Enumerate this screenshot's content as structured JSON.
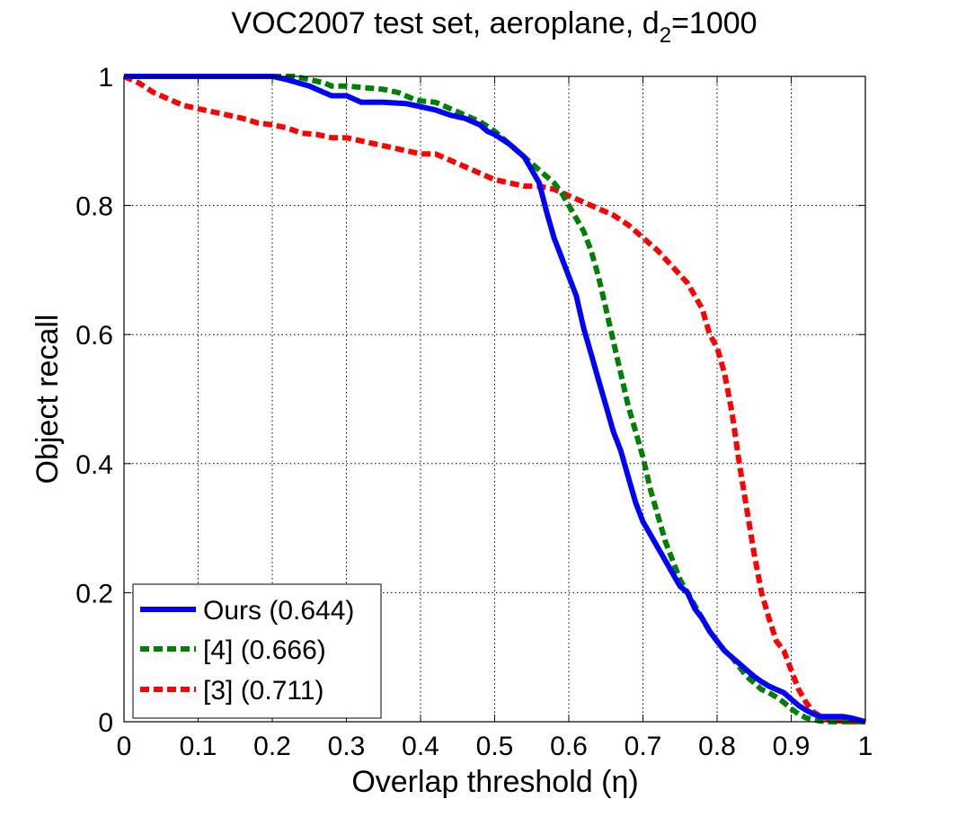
{
  "chart_data": {
    "type": "line",
    "title_main": "VOC2007 test set, aeroplane, d",
    "title_sub": "2",
    "title_tail": "=1000",
    "xlabel": "Overlap threshold (η)",
    "ylabel": "Object recall",
    "xlim": [
      0,
      1
    ],
    "ylim": [
      0,
      1
    ],
    "grid": true,
    "legend_position": "bottom-left",
    "x_ticks": [
      0,
      0.1,
      0.2,
      0.3,
      0.4,
      0.5,
      0.6,
      0.7,
      0.8,
      0.9,
      1
    ],
    "x_tick_labels": [
      "0",
      "0.1",
      "0.2",
      "0.3",
      "0.4",
      "0.5",
      "0.6",
      "0.7",
      "0.8",
      "0.9",
      "1"
    ],
    "y_ticks": [
      0,
      0.2,
      0.4,
      0.6,
      0.8,
      1
    ],
    "y_tick_labels": [
      "0",
      "0.2",
      "0.4",
      "0.6",
      "0.8",
      "1"
    ],
    "series": [
      {
        "name": "Ours (0.644)",
        "color": "#0000ff",
        "style": "solid",
        "x": [
          0,
          0.05,
          0.1,
          0.15,
          0.2,
          0.22,
          0.25,
          0.27,
          0.28,
          0.3,
          0.31,
          0.32,
          0.35,
          0.38,
          0.4,
          0.42,
          0.44,
          0.46,
          0.48,
          0.49,
          0.5,
          0.52,
          0.54,
          0.55,
          0.56,
          0.57,
          0.58,
          0.59,
          0.6,
          0.61,
          0.62,
          0.63,
          0.64,
          0.65,
          0.66,
          0.67,
          0.68,
          0.69,
          0.7,
          0.71,
          0.72,
          0.73,
          0.74,
          0.75,
          0.76,
          0.77,
          0.78,
          0.79,
          0.8,
          0.81,
          0.82,
          0.83,
          0.84,
          0.85,
          0.86,
          0.87,
          0.88,
          0.89,
          0.9,
          0.91,
          0.92,
          0.93,
          0.94,
          0.95,
          0.96,
          0.97,
          0.98,
          0.99,
          1.0
        ],
        "y": [
          1,
          1,
          1,
          1,
          1,
          0.995,
          0.985,
          0.975,
          0.97,
          0.97,
          0.965,
          0.96,
          0.96,
          0.958,
          0.953,
          0.948,
          0.94,
          0.935,
          0.925,
          0.915,
          0.91,
          0.895,
          0.875,
          0.855,
          0.835,
          0.79,
          0.75,
          0.72,
          0.69,
          0.66,
          0.61,
          0.57,
          0.53,
          0.49,
          0.45,
          0.42,
          0.38,
          0.34,
          0.31,
          0.29,
          0.27,
          0.25,
          0.23,
          0.21,
          0.2,
          0.175,
          0.16,
          0.14,
          0.125,
          0.11,
          0.1,
          0.09,
          0.08,
          0.07,
          0.062,
          0.055,
          0.05,
          0.045,
          0.035,
          0.025,
          0.018,
          0.012,
          0.008,
          0.008,
          0.008,
          0.008,
          0.006,
          0.003,
          0.0
        ]
      },
      {
        "name": "[4] (0.666)",
        "color": "#008000",
        "style": "dashed",
        "x": [
          0,
          0.05,
          0.1,
          0.15,
          0.2,
          0.23,
          0.25,
          0.27,
          0.28,
          0.3,
          0.32,
          0.35,
          0.37,
          0.39,
          0.4,
          0.42,
          0.44,
          0.46,
          0.48,
          0.5,
          0.52,
          0.54,
          0.56,
          0.58,
          0.59,
          0.6,
          0.61,
          0.62,
          0.63,
          0.64,
          0.65,
          0.66,
          0.67,
          0.68,
          0.69,
          0.7,
          0.71,
          0.72,
          0.73,
          0.74,
          0.75,
          0.76,
          0.77,
          0.78,
          0.79,
          0.8,
          0.81,
          0.82,
          0.83,
          0.84,
          0.85,
          0.86,
          0.87,
          0.88,
          0.89,
          0.9,
          0.91,
          0.92,
          0.93,
          0.94,
          0.95,
          0.96,
          0.97,
          0.98,
          0.99,
          1.0
        ],
        "y": [
          1,
          1,
          1,
          1,
          1,
          1,
          0.995,
          0.99,
          0.985,
          0.985,
          0.983,
          0.98,
          0.975,
          0.965,
          0.962,
          0.96,
          0.95,
          0.94,
          0.93,
          0.915,
          0.895,
          0.875,
          0.855,
          0.835,
          0.82,
          0.8,
          0.78,
          0.76,
          0.73,
          0.69,
          0.64,
          0.59,
          0.54,
          0.49,
          0.45,
          0.41,
          0.36,
          0.32,
          0.28,
          0.25,
          0.22,
          0.2,
          0.18,
          0.16,
          0.14,
          0.125,
          0.11,
          0.1,
          0.085,
          0.07,
          0.06,
          0.05,
          0.045,
          0.038,
          0.03,
          0.02,
          0.012,
          0.006,
          0.003,
          0.001,
          0.0,
          0.0,
          0.0,
          0.0,
          0.0,
          0.0
        ]
      },
      {
        "name": "[3] (0.711)",
        "color": "#ff0000",
        "style": "dashed",
        "x": [
          0,
          0.02,
          0.04,
          0.06,
          0.08,
          0.1,
          0.12,
          0.14,
          0.16,
          0.18,
          0.2,
          0.22,
          0.24,
          0.26,
          0.28,
          0.3,
          0.32,
          0.34,
          0.36,
          0.38,
          0.4,
          0.42,
          0.44,
          0.46,
          0.48,
          0.5,
          0.52,
          0.54,
          0.56,
          0.58,
          0.6,
          0.62,
          0.64,
          0.66,
          0.68,
          0.7,
          0.72,
          0.74,
          0.76,
          0.78,
          0.79,
          0.8,
          0.81,
          0.82,
          0.83,
          0.84,
          0.85,
          0.86,
          0.87,
          0.88,
          0.89,
          0.9,
          0.91,
          0.92,
          0.93,
          0.94,
          0.95,
          0.96,
          0.97,
          0.98,
          0.99,
          1.0
        ],
        "y": [
          1,
          0.99,
          0.975,
          0.965,
          0.955,
          0.95,
          0.945,
          0.94,
          0.935,
          0.928,
          0.925,
          0.92,
          0.912,
          0.91,
          0.905,
          0.905,
          0.9,
          0.895,
          0.89,
          0.885,
          0.88,
          0.88,
          0.87,
          0.86,
          0.85,
          0.84,
          0.835,
          0.83,
          0.83,
          0.825,
          0.815,
          0.805,
          0.795,
          0.785,
          0.77,
          0.75,
          0.73,
          0.705,
          0.68,
          0.64,
          0.6,
          0.58,
          0.54,
          0.48,
          0.4,
          0.33,
          0.26,
          0.2,
          0.16,
          0.125,
          0.11,
          0.08,
          0.05,
          0.03,
          0.015,
          0.008,
          0.004,
          0.002,
          0.001,
          0.0,
          0.0,
          0.0
        ]
      }
    ]
  }
}
